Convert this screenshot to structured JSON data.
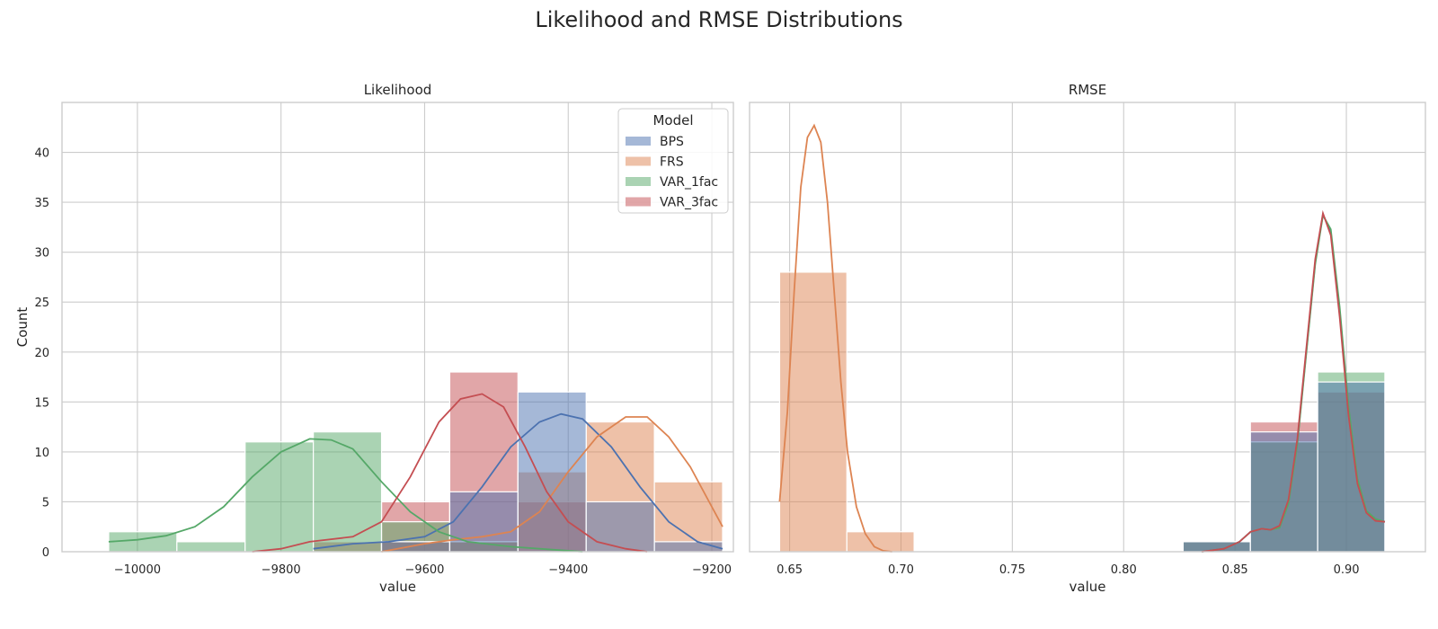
{
  "figure": {
    "suptitle": "Likelihood and RMSE Distributions"
  },
  "colors": {
    "BPS": "#4c72b0",
    "FRS": "#dd8452",
    "VAR_1fac": "#55a868",
    "VAR_3fac": "#c44e52",
    "grid": "#cccccc",
    "spine": "#cccccc",
    "background": "#ffffff"
  },
  "chart_data": [
    {
      "type": "histogram",
      "title": "Likelihood",
      "xlabel": "value",
      "ylabel": "Count",
      "xlim": [
        -10105,
        -9170
      ],
      "ylim": [
        0,
        45
      ],
      "xticks": [
        -10000,
        -9800,
        -9600,
        -9400,
        -9200
      ],
      "xtick_labels": [
        "−10000",
        "−9800",
        "−9600",
        "−9400",
        "−9200"
      ],
      "yticks": [
        0,
        5,
        10,
        15,
        20,
        25,
        30,
        35,
        40
      ],
      "grid": true,
      "kde": true,
      "legend": {
        "title": "Model",
        "placement": "top-right",
        "entries": [
          "BPS",
          "FRS",
          "VAR_1fac",
          "VAR_3fac"
        ]
      },
      "bin_edges": [
        -10040,
        -9945,
        -9850,
        -9755,
        -9660,
        -9565,
        -9470,
        -9375,
        -9280,
        -9185
      ],
      "series": [
        {
          "name": "BPS",
          "counts": [
            0,
            0,
            0,
            0,
            1,
            6,
            16,
            5,
            1
          ]
        },
        {
          "name": "FRS",
          "counts": [
            0,
            0,
            0,
            0,
            1,
            1,
            8,
            13,
            7
          ]
        },
        {
          "name": "VAR_1fac",
          "counts": [
            2,
            1,
            11,
            12,
            3,
            1,
            0,
            0,
            0
          ]
        },
        {
          "name": "VAR_3fac",
          "counts": [
            0,
            0,
            0,
            1,
            5,
            18,
            5,
            0,
            0
          ]
        }
      ],
      "kde_curves": [
        {
          "name": "BPS",
          "x": [
            -9755,
            -9700,
            -9650,
            -9600,
            -9560,
            -9520,
            -9480,
            -9440,
            -9410,
            -9380,
            -9340,
            -9300,
            -9260,
            -9220,
            -9185
          ],
          "y": [
            0.3,
            0.8,
            1.0,
            1.5,
            3.0,
            6.5,
            10.5,
            13.0,
            13.8,
            13.3,
            10.5,
            6.5,
            3.0,
            1.0,
            0.3
          ]
        },
        {
          "name": "FRS",
          "x": [
            -9660,
            -9600,
            -9560,
            -9520,
            -9480,
            -9440,
            -9400,
            -9360,
            -9320,
            -9290,
            -9260,
            -9230,
            -9200,
            -9185
          ],
          "y": [
            0.0,
            0.8,
            1.2,
            1.5,
            2.0,
            4.0,
            8.0,
            11.5,
            13.5,
            13.5,
            11.5,
            8.5,
            4.5,
            2.5
          ]
        },
        {
          "name": "VAR_1fac",
          "x": [
            -10040,
            -10000,
            -9960,
            -9920,
            -9880,
            -9840,
            -9800,
            -9760,
            -9730,
            -9700,
            -9660,
            -9620,
            -9580,
            -9540,
            -9480,
            -9420,
            -9380
          ],
          "y": [
            1.0,
            1.2,
            1.6,
            2.5,
            4.5,
            7.5,
            10.0,
            11.3,
            11.2,
            10.3,
            7.0,
            4.0,
            2.0,
            1.0,
            0.5,
            0.2,
            0.0
          ]
        },
        {
          "name": "VAR_3fac",
          "x": [
            -9840,
            -9800,
            -9760,
            -9700,
            -9660,
            -9620,
            -9580,
            -9550,
            -9520,
            -9490,
            -9460,
            -9430,
            -9400,
            -9360,
            -9320,
            -9290
          ],
          "y": [
            0.0,
            0.3,
            1.0,
            1.5,
            3.0,
            7.5,
            13.0,
            15.3,
            15.8,
            14.5,
            10.5,
            6.0,
            3.0,
            1.0,
            0.3,
            0.0
          ]
        }
      ]
    },
    {
      "type": "histogram",
      "title": "RMSE",
      "xlabel": "value",
      "ylabel": "",
      "xlim": [
        0.632,
        0.9355
      ],
      "ylim": [
        0,
        45
      ],
      "xticks": [
        0.65,
        0.7,
        0.75,
        0.8,
        0.85,
        0.9
      ],
      "xtick_labels": [
        "0.65",
        "0.70",
        "0.75",
        "0.80",
        "0.85",
        "0.90"
      ],
      "grid": true,
      "kde": true,
      "bin_edges": [
        0.6455,
        0.6757,
        0.7059,
        0.7361,
        0.7663,
        0.7965,
        0.8267,
        0.8569,
        0.8871,
        0.9173
      ],
      "series": [
        {
          "name": "BPS",
          "counts": [
            0,
            0,
            0,
            0,
            0,
            0,
            1,
            12,
            17
          ]
        },
        {
          "name": "FRS",
          "counts": [
            28,
            2,
            0,
            0,
            0,
            0,
            0,
            0,
            0
          ]
        },
        {
          "name": "VAR_1fac",
          "counts": [
            0,
            0,
            0,
            0,
            0,
            0,
            1,
            11,
            18
          ]
        },
        {
          "name": "VAR_3fac",
          "counts": [
            0,
            0,
            0,
            0,
            0,
            0,
            1,
            13,
            16
          ]
        }
      ],
      "kde_curves": [
        {
          "name": "FRS",
          "x": [
            0.6455,
            0.649,
            0.652,
            0.655,
            0.658,
            0.661,
            0.664,
            0.667,
            0.67,
            0.673,
            0.676,
            0.68,
            0.684,
            0.688,
            0.692,
            0.696
          ],
          "y": [
            5.0,
            14.0,
            26.0,
            36.5,
            41.5,
            42.7,
            41.0,
            35.0,
            26.0,
            17.0,
            10.0,
            4.5,
            1.8,
            0.5,
            0.1,
            0.0
          ]
        },
        {
          "name": "BPS",
          "x": [
            0.835,
            0.845,
            0.852,
            0.857,
            0.862,
            0.866,
            0.87,
            0.874,
            0.878,
            0.882,
            0.886,
            0.8895,
            0.893,
            0.897,
            0.901,
            0.905,
            0.909,
            0.913,
            0.9173
          ],
          "y": [
            0.0,
            0.3,
            1.0,
            2.0,
            2.3,
            2.2,
            2.5,
            5.0,
            11.0,
            20.0,
            29.0,
            33.8,
            32.0,
            24.0,
            14.0,
            7.0,
            4.0,
            3.2,
            3.0
          ]
        },
        {
          "name": "VAR_1fac",
          "x": [
            0.835,
            0.845,
            0.852,
            0.857,
            0.862,
            0.866,
            0.87,
            0.874,
            0.878,
            0.882,
            0.886,
            0.8895,
            0.893,
            0.897,
            0.901,
            0.905,
            0.909,
            0.913,
            0.9173
          ],
          "y": [
            0.0,
            0.3,
            1.0,
            2.0,
            2.3,
            2.2,
            2.4,
            4.8,
            10.8,
            19.8,
            28.8,
            33.7,
            32.3,
            24.5,
            14.5,
            7.3,
            4.1,
            3.3,
            3.0
          ]
        },
        {
          "name": "VAR_3fac",
          "x": [
            0.835,
            0.845,
            0.852,
            0.857,
            0.862,
            0.866,
            0.87,
            0.874,
            0.878,
            0.882,
            0.886,
            0.8895,
            0.893,
            0.897,
            0.901,
            0.905,
            0.909,
            0.913,
            0.9173
          ],
          "y": [
            0.0,
            0.3,
            1.0,
            2.0,
            2.3,
            2.2,
            2.6,
            5.2,
            11.3,
            20.3,
            29.3,
            33.9,
            31.7,
            23.5,
            13.6,
            6.8,
            3.9,
            3.1,
            3.0
          ]
        }
      ]
    }
  ]
}
